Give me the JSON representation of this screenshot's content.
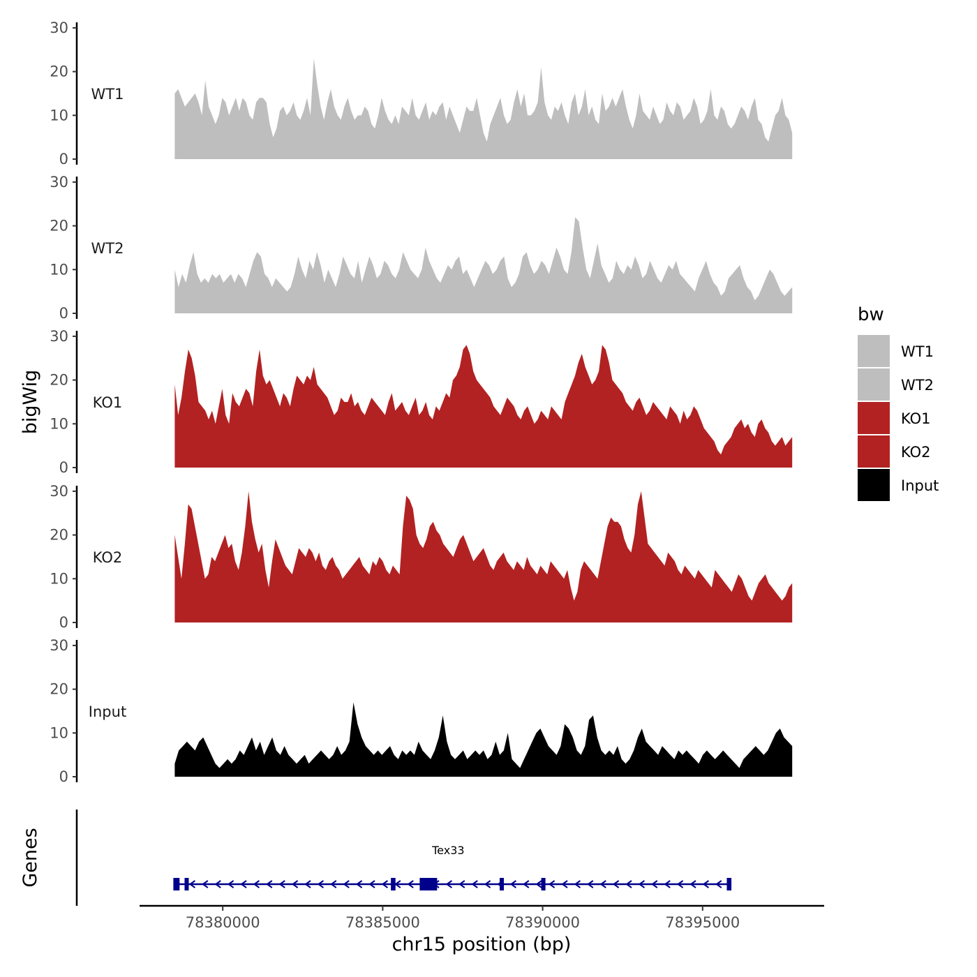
{
  "chart_data": {
    "type": "area",
    "ylabel": "bigWig",
    "genes_label": "Genes",
    "xlabel": "chr15 position (bp)",
    "xlim": [
      78377400,
      78398800
    ],
    "ylim": [
      0,
      31
    ],
    "region": [
      78378500,
      78397800
    ],
    "x_ticks": [
      {
        "value": 78380000,
        "label": "78380000"
      },
      {
        "value": 78385000,
        "label": "78385000"
      },
      {
        "value": 78390000,
        "label": "78390000"
      },
      {
        "value": 78395000,
        "label": "78395000"
      }
    ],
    "y_ticks": [
      {
        "value": 0,
        "label": "0"
      },
      {
        "value": 10,
        "label": "10"
      },
      {
        "value": 20,
        "label": "20"
      },
      {
        "value": 30,
        "label": "30"
      }
    ],
    "legend": {
      "title": "bw",
      "entries": [
        {
          "label": "WT1",
          "color": "#bebebe"
        },
        {
          "label": "WT2",
          "color": "#bebebe"
        },
        {
          "label": "KO1",
          "color": "#b22222"
        },
        {
          "label": "KO2",
          "color": "#b22222"
        },
        {
          "label": "Input",
          "color": "#000000"
        }
      ]
    },
    "series": [
      {
        "name": "WT1",
        "color": "#bebebe",
        "values": [
          15,
          16,
          14,
          12,
          13,
          14,
          15,
          13,
          10,
          18,
          12,
          10,
          8,
          10,
          14,
          13,
          10,
          12,
          14,
          11,
          14,
          13,
          10,
          9,
          13,
          14,
          14,
          13,
          8,
          5,
          7,
          11,
          12,
          10,
          11,
          13,
          10,
          9,
          11,
          14,
          10,
          23,
          17,
          12,
          9,
          13,
          16,
          12,
          10,
          9,
          12,
          14,
          11,
          9,
          10,
          10,
          12,
          11,
          8,
          7,
          10,
          14,
          11,
          9,
          8,
          10,
          8,
          12,
          11,
          10,
          14,
          10,
          9,
          11,
          13,
          9,
          11,
          10,
          12,
          13,
          9,
          12,
          10,
          8,
          6,
          9,
          12,
          11,
          11,
          14,
          10,
          6,
          4,
          8,
          10,
          12,
          14,
          10,
          8,
          9,
          13,
          16,
          12,
          15,
          10,
          10,
          11,
          13,
          21,
          13,
          10,
          9,
          12,
          11,
          13,
          10,
          8,
          13,
          15,
          10,
          12,
          16,
          10,
          12,
          9,
          8,
          15,
          11,
          12,
          14,
          12,
          14,
          16,
          12,
          9,
          7,
          10,
          15,
          11,
          10,
          9,
          12,
          10,
          8,
          9,
          13,
          11,
          10,
          13,
          12,
          9,
          10,
          11,
          14,
          12,
          8,
          9,
          11,
          16,
          10,
          9,
          12,
          11,
          8,
          7,
          8,
          10,
          12,
          11,
          9,
          12,
          14,
          9,
          8,
          5,
          4,
          7,
          10,
          11,
          14,
          10,
          9,
          6
        ]
      },
      {
        "name": "WT2",
        "color": "#bebebe",
        "values": [
          10,
          6,
          9,
          7,
          11,
          14,
          9,
          7,
          8,
          7,
          9,
          8,
          9,
          7,
          8,
          9,
          7,
          9,
          8,
          6,
          9,
          12,
          14,
          13,
          9,
          8,
          6,
          8,
          7,
          6,
          5,
          6,
          9,
          13,
          10,
          8,
          12,
          10,
          14,
          11,
          7,
          10,
          8,
          6,
          9,
          13,
          11,
          9,
          8,
          12,
          7,
          10,
          13,
          11,
          8,
          9,
          12,
          11,
          9,
          8,
          10,
          14,
          12,
          10,
          9,
          8,
          10,
          15,
          12,
          10,
          8,
          7,
          9,
          11,
          10,
          12,
          13,
          9,
          10,
          8,
          6,
          8,
          10,
          12,
          11,
          9,
          10,
          12,
          13,
          8,
          6,
          7,
          9,
          13,
          14,
          11,
          9,
          10,
          12,
          11,
          9,
          12,
          15,
          13,
          10,
          9,
          14,
          22,
          21,
          15,
          10,
          8,
          12,
          16,
          11,
          9,
          7,
          8,
          12,
          10,
          9,
          11,
          10,
          13,
          11,
          8,
          9,
          12,
          10,
          8,
          7,
          9,
          11,
          10,
          12,
          9,
          8,
          7,
          6,
          5,
          8,
          10,
          12,
          9,
          7,
          6,
          4,
          5,
          8,
          9,
          10,
          11,
          8,
          6,
          5,
          3,
          4,
          6,
          8,
          10,
          9,
          7,
          5,
          4,
          5,
          6
        ]
      },
      {
        "name": "KO1",
        "color": "#b22222",
        "values": [
          19,
          12,
          16,
          22,
          27,
          25,
          21,
          15,
          14,
          13,
          11,
          13,
          10,
          14,
          18,
          12,
          10,
          17,
          15,
          14,
          16,
          18,
          17,
          14,
          22,
          27,
          21,
          19,
          20,
          18,
          16,
          14,
          17,
          16,
          14,
          18,
          21,
          20,
          19,
          21,
          20,
          23,
          19,
          18,
          17,
          16,
          14,
          12,
          13,
          16,
          15,
          15,
          17,
          14,
          15,
          13,
          12,
          14,
          16,
          15,
          14,
          13,
          12,
          15,
          17,
          13,
          14,
          15,
          13,
          12,
          14,
          16,
          12,
          13,
          15,
          12,
          11,
          14,
          13,
          15,
          17,
          16,
          20,
          21,
          23,
          27,
          28,
          26,
          22,
          20,
          19,
          18,
          17,
          16,
          14,
          13,
          12,
          14,
          16,
          15,
          14,
          12,
          11,
          13,
          14,
          12,
          10,
          11,
          13,
          12,
          11,
          14,
          13,
          12,
          11,
          15,
          17,
          19,
          21,
          24,
          26,
          23,
          21,
          19,
          20,
          22,
          28,
          27,
          24,
          20,
          19,
          18,
          17,
          15,
          14,
          13,
          15,
          16,
          14,
          12,
          13,
          15,
          14,
          13,
          12,
          11,
          14,
          13,
          12,
          10,
          13,
          11,
          12,
          14,
          13,
          11,
          9,
          8,
          7,
          6,
          4,
          3,
          5,
          6,
          7,
          9,
          10,
          11,
          9,
          10,
          8,
          7,
          10,
          11,
          9,
          8,
          6,
          5,
          6,
          7,
          5,
          6,
          7
        ]
      },
      {
        "name": "KO2",
        "color": "#b22222",
        "values": [
          20,
          15,
          10,
          18,
          27,
          26,
          22,
          18,
          14,
          10,
          11,
          15,
          14,
          16,
          18,
          20,
          17,
          18,
          14,
          12,
          16,
          22,
          30,
          23,
          19,
          16,
          18,
          12,
          8,
          14,
          19,
          17,
          15,
          13,
          12,
          11,
          14,
          17,
          16,
          15,
          17,
          16,
          14,
          16,
          13,
          12,
          14,
          15,
          13,
          12,
          10,
          11,
          12,
          13,
          14,
          15,
          13,
          12,
          11,
          14,
          13,
          15,
          14,
          12,
          11,
          13,
          12,
          11,
          22,
          29,
          28,
          26,
          20,
          18,
          17,
          19,
          22,
          23,
          21,
          20,
          18,
          17,
          16,
          15,
          17,
          19,
          20,
          18,
          16,
          14,
          15,
          16,
          17,
          15,
          13,
          12,
          14,
          15,
          16,
          14,
          13,
          12,
          14,
          13,
          12,
          15,
          13,
          12,
          11,
          13,
          12,
          11,
          14,
          13,
          12,
          11,
          10,
          12,
          8,
          5,
          7,
          12,
          14,
          13,
          12,
          11,
          10,
          14,
          18,
          22,
          24,
          23,
          23,
          22,
          19,
          17,
          16,
          20,
          27,
          30,
          24,
          18,
          17,
          16,
          15,
          14,
          13,
          16,
          15,
          14,
          12,
          11,
          13,
          12,
          11,
          10,
          12,
          11,
          10,
          9,
          8,
          12,
          11,
          10,
          9,
          8,
          7,
          9,
          11,
          10,
          8,
          6,
          5,
          7,
          9,
          10,
          11,
          9,
          8,
          7,
          6,
          5,
          6,
          8,
          9
        ]
      },
      {
        "name": "Input",
        "color": "#000000",
        "values": [
          3,
          6,
          7,
          8,
          7,
          6,
          8,
          9,
          7,
          5,
          3,
          2,
          3,
          4,
          3,
          4,
          6,
          5,
          7,
          9,
          6,
          8,
          5,
          7,
          9,
          6,
          5,
          7,
          5,
          4,
          3,
          4,
          5,
          3,
          4,
          5,
          6,
          5,
          4,
          5,
          7,
          5,
          6,
          8,
          17,
          12,
          9,
          7,
          6,
          5,
          6,
          5,
          6,
          7,
          5,
          4,
          6,
          5,
          6,
          5,
          8,
          6,
          5,
          4,
          6,
          9,
          14,
          8,
          5,
          4,
          5,
          6,
          4,
          5,
          6,
          5,
          6,
          4,
          5,
          8,
          5,
          6,
          10,
          4,
          3,
          2,
          4,
          6,
          8,
          10,
          11,
          9,
          7,
          6,
          5,
          7,
          12,
          11,
          9,
          6,
          5,
          7,
          13,
          14,
          9,
          6,
          5,
          6,
          5,
          7,
          4,
          3,
          4,
          6,
          9,
          11,
          8,
          7,
          6,
          5,
          7,
          6,
          5,
          4,
          6,
          5,
          6,
          5,
          4,
          3,
          5,
          6,
          5,
          4,
          5,
          6,
          5,
          4,
          3,
          2,
          4,
          5,
          6,
          7,
          6,
          5,
          6,
          8,
          10,
          11,
          9,
          8,
          7
        ]
      }
    ],
    "genes": [
      {
        "name": "Tex33",
        "start": 78378500,
        "end": 78395900,
        "strand": "-",
        "exons": [
          [
            78378500,
            78378650
          ],
          [
            78378850,
            78378900
          ],
          [
            78385300,
            78385400
          ],
          [
            78386200,
            78386700
          ],
          [
            78388700,
            78388780
          ],
          [
            78390000,
            78390040
          ],
          [
            78395800,
            78395900
          ]
        ]
      }
    ]
  }
}
